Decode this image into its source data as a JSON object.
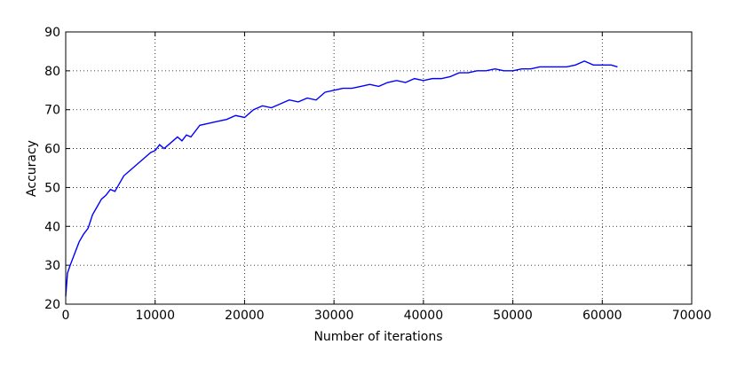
{
  "chart_data": {
    "type": "line",
    "xlabel": "Number of iterations",
    "ylabel": "Accuracy",
    "series": [
      {
        "color": "#0000ff",
        "x": [
          0,
          200,
          500,
          1000,
          1500,
          2000,
          2500,
          3000,
          3500,
          4000,
          4500,
          5000,
          5500,
          6000,
          6500,
          7000,
          7500,
          8000,
          8500,
          9000,
          9500,
          10000,
          10500,
          11000,
          11500,
          12000,
          12500,
          13000,
          13500,
          14000,
          15000,
          16000,
          17000,
          18000,
          19000,
          20000,
          21000,
          22000,
          23000,
          24000,
          25000,
          26000,
          27000,
          28000,
          29000,
          30000,
          31000,
          32000,
          33000,
          34000,
          35000,
          36000,
          37000,
          38000,
          39000,
          40000,
          41000,
          42000,
          43000,
          44000,
          45000,
          46000,
          47000,
          48000,
          49000,
          50000,
          51000,
          52000,
          53000,
          54000,
          55000,
          56000,
          57000,
          58000,
          59000,
          60000,
          61000,
          61700
        ],
        "values": [
          22,
          28,
          30,
          33,
          36,
          38,
          39.5,
          43,
          45,
          47,
          48,
          49.5,
          49,
          51,
          53,
          54,
          55,
          56,
          57,
          58,
          59,
          59.5,
          61,
          60,
          61,
          62,
          63,
          62,
          63.5,
          63,
          66,
          66.5,
          67,
          67.5,
          68.5,
          68,
          70,
          71,
          70.5,
          71.5,
          72.5,
          72,
          73,
          72.5,
          74.5,
          75,
          75.5,
          75.5,
          76,
          76.5,
          76,
          77,
          77.5,
          77,
          78,
          77.5,
          78,
          78,
          78.5,
          79.5,
          79.5,
          80,
          80,
          80.5,
          80,
          80,
          80.5,
          80.5,
          81,
          81,
          81,
          81,
          81.5,
          82.5,
          81.5,
          81.5,
          81.5,
          81
        ]
      }
    ],
    "xlim": [
      0,
      70000
    ],
    "xticks": [
      0,
      10000,
      20000,
      30000,
      40000,
      50000,
      60000,
      70000
    ],
    "ylim": [
      20,
      90
    ],
    "yticks": [
      20,
      30,
      40,
      50,
      60,
      70,
      80,
      90
    ],
    "grid": true
  }
}
